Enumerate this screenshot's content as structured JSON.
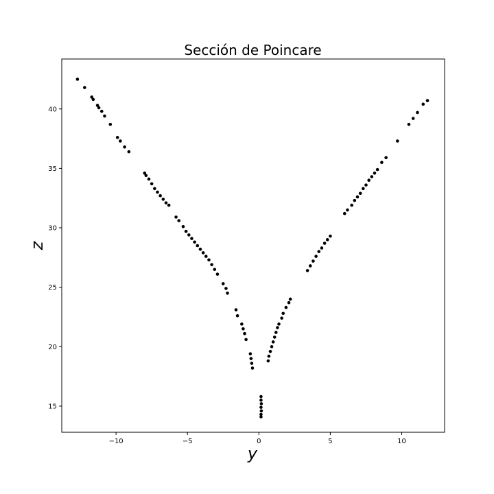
{
  "chart_data": {
    "type": "scatter",
    "title": "Sección de Poincare",
    "xlabel": "y",
    "ylabel": "z",
    "xlim": [
      -13.8,
      13.0
    ],
    "ylim": [
      12.8,
      44.2
    ],
    "xticks": [
      -10,
      -5,
      0,
      5,
      10
    ],
    "yticks": [
      15,
      20,
      25,
      30,
      35,
      40
    ],
    "xtick_labels": [
      "−10",
      "−5",
      "0",
      "5",
      "10"
    ],
    "ytick_labels": [
      "15",
      "20",
      "25",
      "30",
      "35",
      "40"
    ],
    "grid": false,
    "marker_color": "#000000",
    "series": [
      {
        "points": [
          [
            -12.7,
            42.5
          ],
          [
            -12.2,
            41.8
          ],
          [
            -11.7,
            41.0
          ],
          [
            -11.6,
            40.8
          ],
          [
            -11.3,
            40.3
          ],
          [
            -11.2,
            40.1
          ],
          [
            -11.0,
            39.8
          ],
          [
            -10.8,
            39.4
          ],
          [
            -10.4,
            38.7
          ],
          [
            -9.9,
            37.6
          ],
          [
            -9.7,
            37.3
          ],
          [
            -9.4,
            36.8
          ],
          [
            -9.1,
            36.4
          ],
          [
            -8.0,
            34.6
          ],
          [
            -7.9,
            34.4
          ],
          [
            -7.7,
            34.1
          ],
          [
            -7.5,
            33.7
          ],
          [
            -7.3,
            33.3
          ],
          [
            -7.1,
            33.0
          ],
          [
            -6.9,
            32.7
          ],
          [
            -6.7,
            32.4
          ],
          [
            -6.5,
            32.1
          ],
          [
            -6.3,
            31.9
          ],
          [
            -5.8,
            30.9
          ],
          [
            -5.6,
            30.6
          ],
          [
            -5.3,
            30.1
          ],
          [
            -5.1,
            29.7
          ],
          [
            -4.9,
            29.4
          ],
          [
            -4.7,
            29.1
          ],
          [
            -4.5,
            28.8
          ],
          [
            -4.3,
            28.5
          ],
          [
            -4.1,
            28.2
          ],
          [
            -3.9,
            27.9
          ],
          [
            -3.7,
            27.6
          ],
          [
            -3.5,
            27.3
          ],
          [
            -3.3,
            26.9
          ],
          [
            -3.1,
            26.5
          ],
          [
            -2.9,
            26.1
          ],
          [
            -2.5,
            25.3
          ],
          [
            -2.3,
            24.9
          ],
          [
            -2.2,
            24.5
          ],
          [
            -1.6,
            23.1
          ],
          [
            -1.5,
            22.6
          ],
          [
            -1.2,
            21.9
          ],
          [
            -1.1,
            21.5
          ],
          [
            -1.0,
            21.1
          ],
          [
            -0.9,
            20.6
          ],
          [
            -0.6,
            19.4
          ],
          [
            -0.55,
            19.0
          ],
          [
            -0.5,
            18.6
          ],
          [
            -0.45,
            18.2
          ],
          [
            0.15,
            15.8
          ],
          [
            0.15,
            15.5
          ],
          [
            0.17,
            15.2
          ],
          [
            0.15,
            14.9
          ],
          [
            0.17,
            14.6
          ],
          [
            0.15,
            14.3
          ],
          [
            0.15,
            14.1
          ],
          [
            0.65,
            18.8
          ],
          [
            0.7,
            19.2
          ],
          [
            0.8,
            19.6
          ],
          [
            0.9,
            20.0
          ],
          [
            1.0,
            20.4
          ],
          [
            1.1,
            20.8
          ],
          [
            1.2,
            21.2
          ],
          [
            1.3,
            21.6
          ],
          [
            1.4,
            21.9
          ],
          [
            1.6,
            22.4
          ],
          [
            1.7,
            22.8
          ],
          [
            1.9,
            23.3
          ],
          [
            2.1,
            23.7
          ],
          [
            2.2,
            24.0
          ],
          [
            3.4,
            26.4
          ],
          [
            3.6,
            26.8
          ],
          [
            3.8,
            27.2
          ],
          [
            4.0,
            27.6
          ],
          [
            4.2,
            28.0
          ],
          [
            4.4,
            28.3
          ],
          [
            4.6,
            28.7
          ],
          [
            4.8,
            29.0
          ],
          [
            5.0,
            29.3
          ],
          [
            6.0,
            31.2
          ],
          [
            6.2,
            31.5
          ],
          [
            6.5,
            31.9
          ],
          [
            6.7,
            32.3
          ],
          [
            6.9,
            32.6
          ],
          [
            7.1,
            32.9
          ],
          [
            7.3,
            33.3
          ],
          [
            7.5,
            33.6
          ],
          [
            7.7,
            34.0
          ],
          [
            7.9,
            34.3
          ],
          [
            8.1,
            34.6
          ],
          [
            8.3,
            34.9
          ],
          [
            8.6,
            35.5
          ],
          [
            8.9,
            35.9
          ],
          [
            9.7,
            37.3
          ],
          [
            10.5,
            38.7
          ],
          [
            10.8,
            39.2
          ],
          [
            11.1,
            39.7
          ],
          [
            11.5,
            40.4
          ],
          [
            11.8,
            40.7
          ]
        ]
      }
    ]
  }
}
